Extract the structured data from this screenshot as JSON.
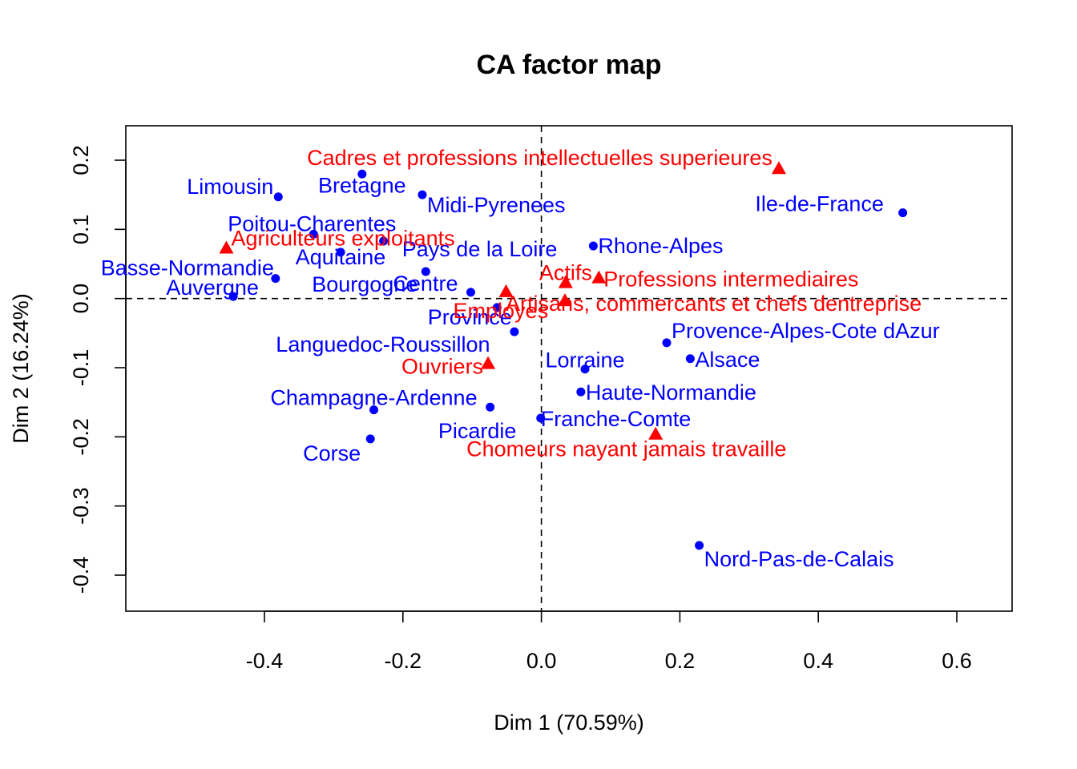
{
  "chart_data": {
    "type": "scatter",
    "title": "CA factor map",
    "xlabel": "Dim 1 (70.59%)",
    "ylabel": "Dim 2 (16.24%)",
    "xlim": [
      -0.4,
      0.6
    ],
    "ylim": [
      -0.4,
      0.2
    ],
    "xticks": [
      -0.4,
      -0.2,
      0.0,
      0.2,
      0.4,
      0.6
    ],
    "yticks": [
      -0.4,
      -0.3,
      -0.2,
      -0.1,
      0.0,
      0.1,
      0.2
    ],
    "xtick_labels": [
      "-0.4",
      "-0.2",
      "0.0",
      "0.2",
      "0.4",
      "0.6"
    ],
    "ytick_labels": [
      "-0.4",
      "-0.3",
      "-0.2",
      "-0.1",
      "0.0",
      "0.1",
      "0.2"
    ],
    "grid": false,
    "reference_lines": {
      "x": 0.0,
      "y": 0.0,
      "style": "dashed"
    },
    "colors": {
      "rows": "#0000ff",
      "columns": "#ff0000"
    },
    "rows": [
      {
        "label": "Limousin",
        "x": -0.38,
        "y": 0.147
      },
      {
        "label": "Bretagne",
        "x": -0.259,
        "y": 0.18
      },
      {
        "label": "Midi-Pyrenees",
        "x": -0.172,
        "y": 0.15
      },
      {
        "label": "Poitou-Charentes",
        "x": -0.329,
        "y": 0.093
      },
      {
        "label": "Basse-Normandie",
        "x": -0.384,
        "y": 0.029
      },
      {
        "label": "Aquitaine",
        "x": -0.29,
        "y": 0.067
      },
      {
        "label": "Pays de la Loire",
        "x": -0.228,
        "y": 0.083
      },
      {
        "label": "Bourgogne",
        "x": -0.167,
        "y": 0.039
      },
      {
        "label": "Auvergne",
        "x": -0.445,
        "y": 0.003
      },
      {
        "label": "Centre",
        "x": -0.102,
        "y": 0.009
      },
      {
        "label": "Province",
        "x": -0.064,
        "y": -0.013
      },
      {
        "label": "Ile-de-France",
        "x": 0.522,
        "y": 0.124
      },
      {
        "label": "Rhone-Alpes",
        "x": 0.075,
        "y": 0.076
      },
      {
        "label": "Languedoc-Roussillon",
        "x": -0.039,
        "y": -0.048
      },
      {
        "label": "Provence-Alpes-Cote dAzur",
        "x": 0.181,
        "y": -0.064
      },
      {
        "label": "Alsace",
        "x": 0.215,
        "y": -0.087
      },
      {
        "label": "Lorraine",
        "x": 0.063,
        "y": -0.102
      },
      {
        "label": "Haute-Normandie",
        "x": 0.057,
        "y": -0.135
      },
      {
        "label": "Champagne-Ardenne",
        "x": -0.242,
        "y": -0.161
      },
      {
        "label": "Picardie",
        "x": -0.074,
        "y": -0.157
      },
      {
        "label": "Franche-Comte",
        "x": -0.001,
        "y": -0.173
      },
      {
        "label": "Corse",
        "x": -0.247,
        "y": -0.203
      },
      {
        "label": "Nord-Pas-de-Calais",
        "x": 0.228,
        "y": -0.357
      }
    ],
    "columns": [
      {
        "label": "Cadres et professions intellectuelles superieures",
        "x": 0.343,
        "y": 0.187
      },
      {
        "label": "Agriculteurs exploitants",
        "x": -0.455,
        "y": 0.072
      },
      {
        "label": "Actifs",
        "x": 0.035,
        "y": 0.022
      },
      {
        "label": "Professions intermediaires",
        "x": 0.083,
        "y": 0.029
      },
      {
        "label": "Artisans, commercants et chefs dentreprise",
        "x": 0.034,
        "y": -0.004
      },
      {
        "label": "Employes",
        "x": -0.051,
        "y": 0.009
      },
      {
        "label": "Ouvriers",
        "x": -0.077,
        "y": -0.095
      },
      {
        "label": "Chomeurs nayant jamais travaille",
        "x": 0.165,
        "y": -0.197
      }
    ]
  }
}
